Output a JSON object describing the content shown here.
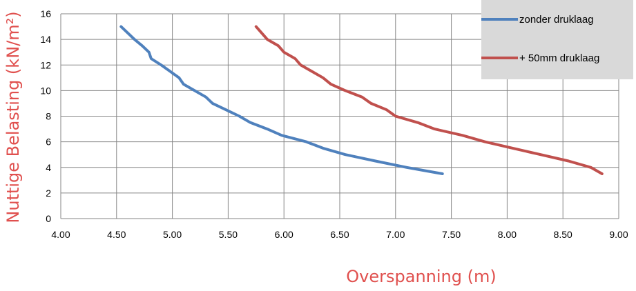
{
  "chart_data": {
    "type": "line",
    "title": "",
    "xlabel": "Overspanning (m)",
    "ylabel": "Nuttige Belasting (kN/m²)",
    "xlim": [
      4.0,
      9.0
    ],
    "ylim": [
      0,
      16
    ],
    "x_ticks": [
      "4.00",
      "4.50",
      "5.00",
      "5.50",
      "6.00",
      "6.50",
      "7.00",
      "7.50",
      "8.00",
      "8.50",
      "9.00"
    ],
    "y_ticks": [
      "0",
      "2",
      "4",
      "6",
      "8",
      "10",
      "12",
      "14",
      "16"
    ],
    "grid": true,
    "legend_position": "top-right",
    "label_color": "#e0504e",
    "series": [
      {
        "name": "zonder druklaag",
        "color": "#4f81bd",
        "points": [
          [
            4.54,
            15.0
          ],
          [
            4.6,
            14.5
          ],
          [
            4.66,
            14.0
          ],
          [
            4.73,
            13.5
          ],
          [
            4.79,
            13.0
          ],
          [
            4.81,
            12.5
          ],
          [
            4.9,
            12.0
          ],
          [
            4.98,
            11.5
          ],
          [
            5.06,
            11.0
          ],
          [
            5.1,
            10.5
          ],
          [
            5.2,
            10.0
          ],
          [
            5.3,
            9.5
          ],
          [
            5.36,
            9.0
          ],
          [
            5.48,
            8.5
          ],
          [
            5.6,
            8.0
          ],
          [
            5.7,
            7.5
          ],
          [
            5.85,
            7.0
          ],
          [
            5.98,
            6.5
          ],
          [
            6.2,
            6.0
          ],
          [
            6.35,
            5.5
          ],
          [
            6.55,
            5.0
          ],
          [
            6.82,
            4.5
          ],
          [
            7.1,
            4.0
          ],
          [
            7.42,
            3.5
          ]
        ]
      },
      {
        "name": "+ 50mm druklaag",
        "color": "#c0504d",
        "points": [
          [
            5.75,
            15.0
          ],
          [
            5.8,
            14.5
          ],
          [
            5.85,
            14.0
          ],
          [
            5.95,
            13.5
          ],
          [
            6.0,
            13.0
          ],
          [
            6.1,
            12.5
          ],
          [
            6.15,
            12.0
          ],
          [
            6.25,
            11.5
          ],
          [
            6.35,
            11.0
          ],
          [
            6.42,
            10.5
          ],
          [
            6.55,
            10.0
          ],
          [
            6.7,
            9.5
          ],
          [
            6.78,
            9.0
          ],
          [
            6.92,
            8.5
          ],
          [
            7.0,
            8.0
          ],
          [
            7.2,
            7.5
          ],
          [
            7.35,
            7.0
          ],
          [
            7.6,
            6.5
          ],
          [
            7.8,
            6.0
          ],
          [
            8.05,
            5.5
          ],
          [
            8.3,
            5.0
          ],
          [
            8.55,
            4.5
          ],
          [
            8.75,
            4.0
          ],
          [
            8.85,
            3.5
          ]
        ]
      }
    ]
  }
}
